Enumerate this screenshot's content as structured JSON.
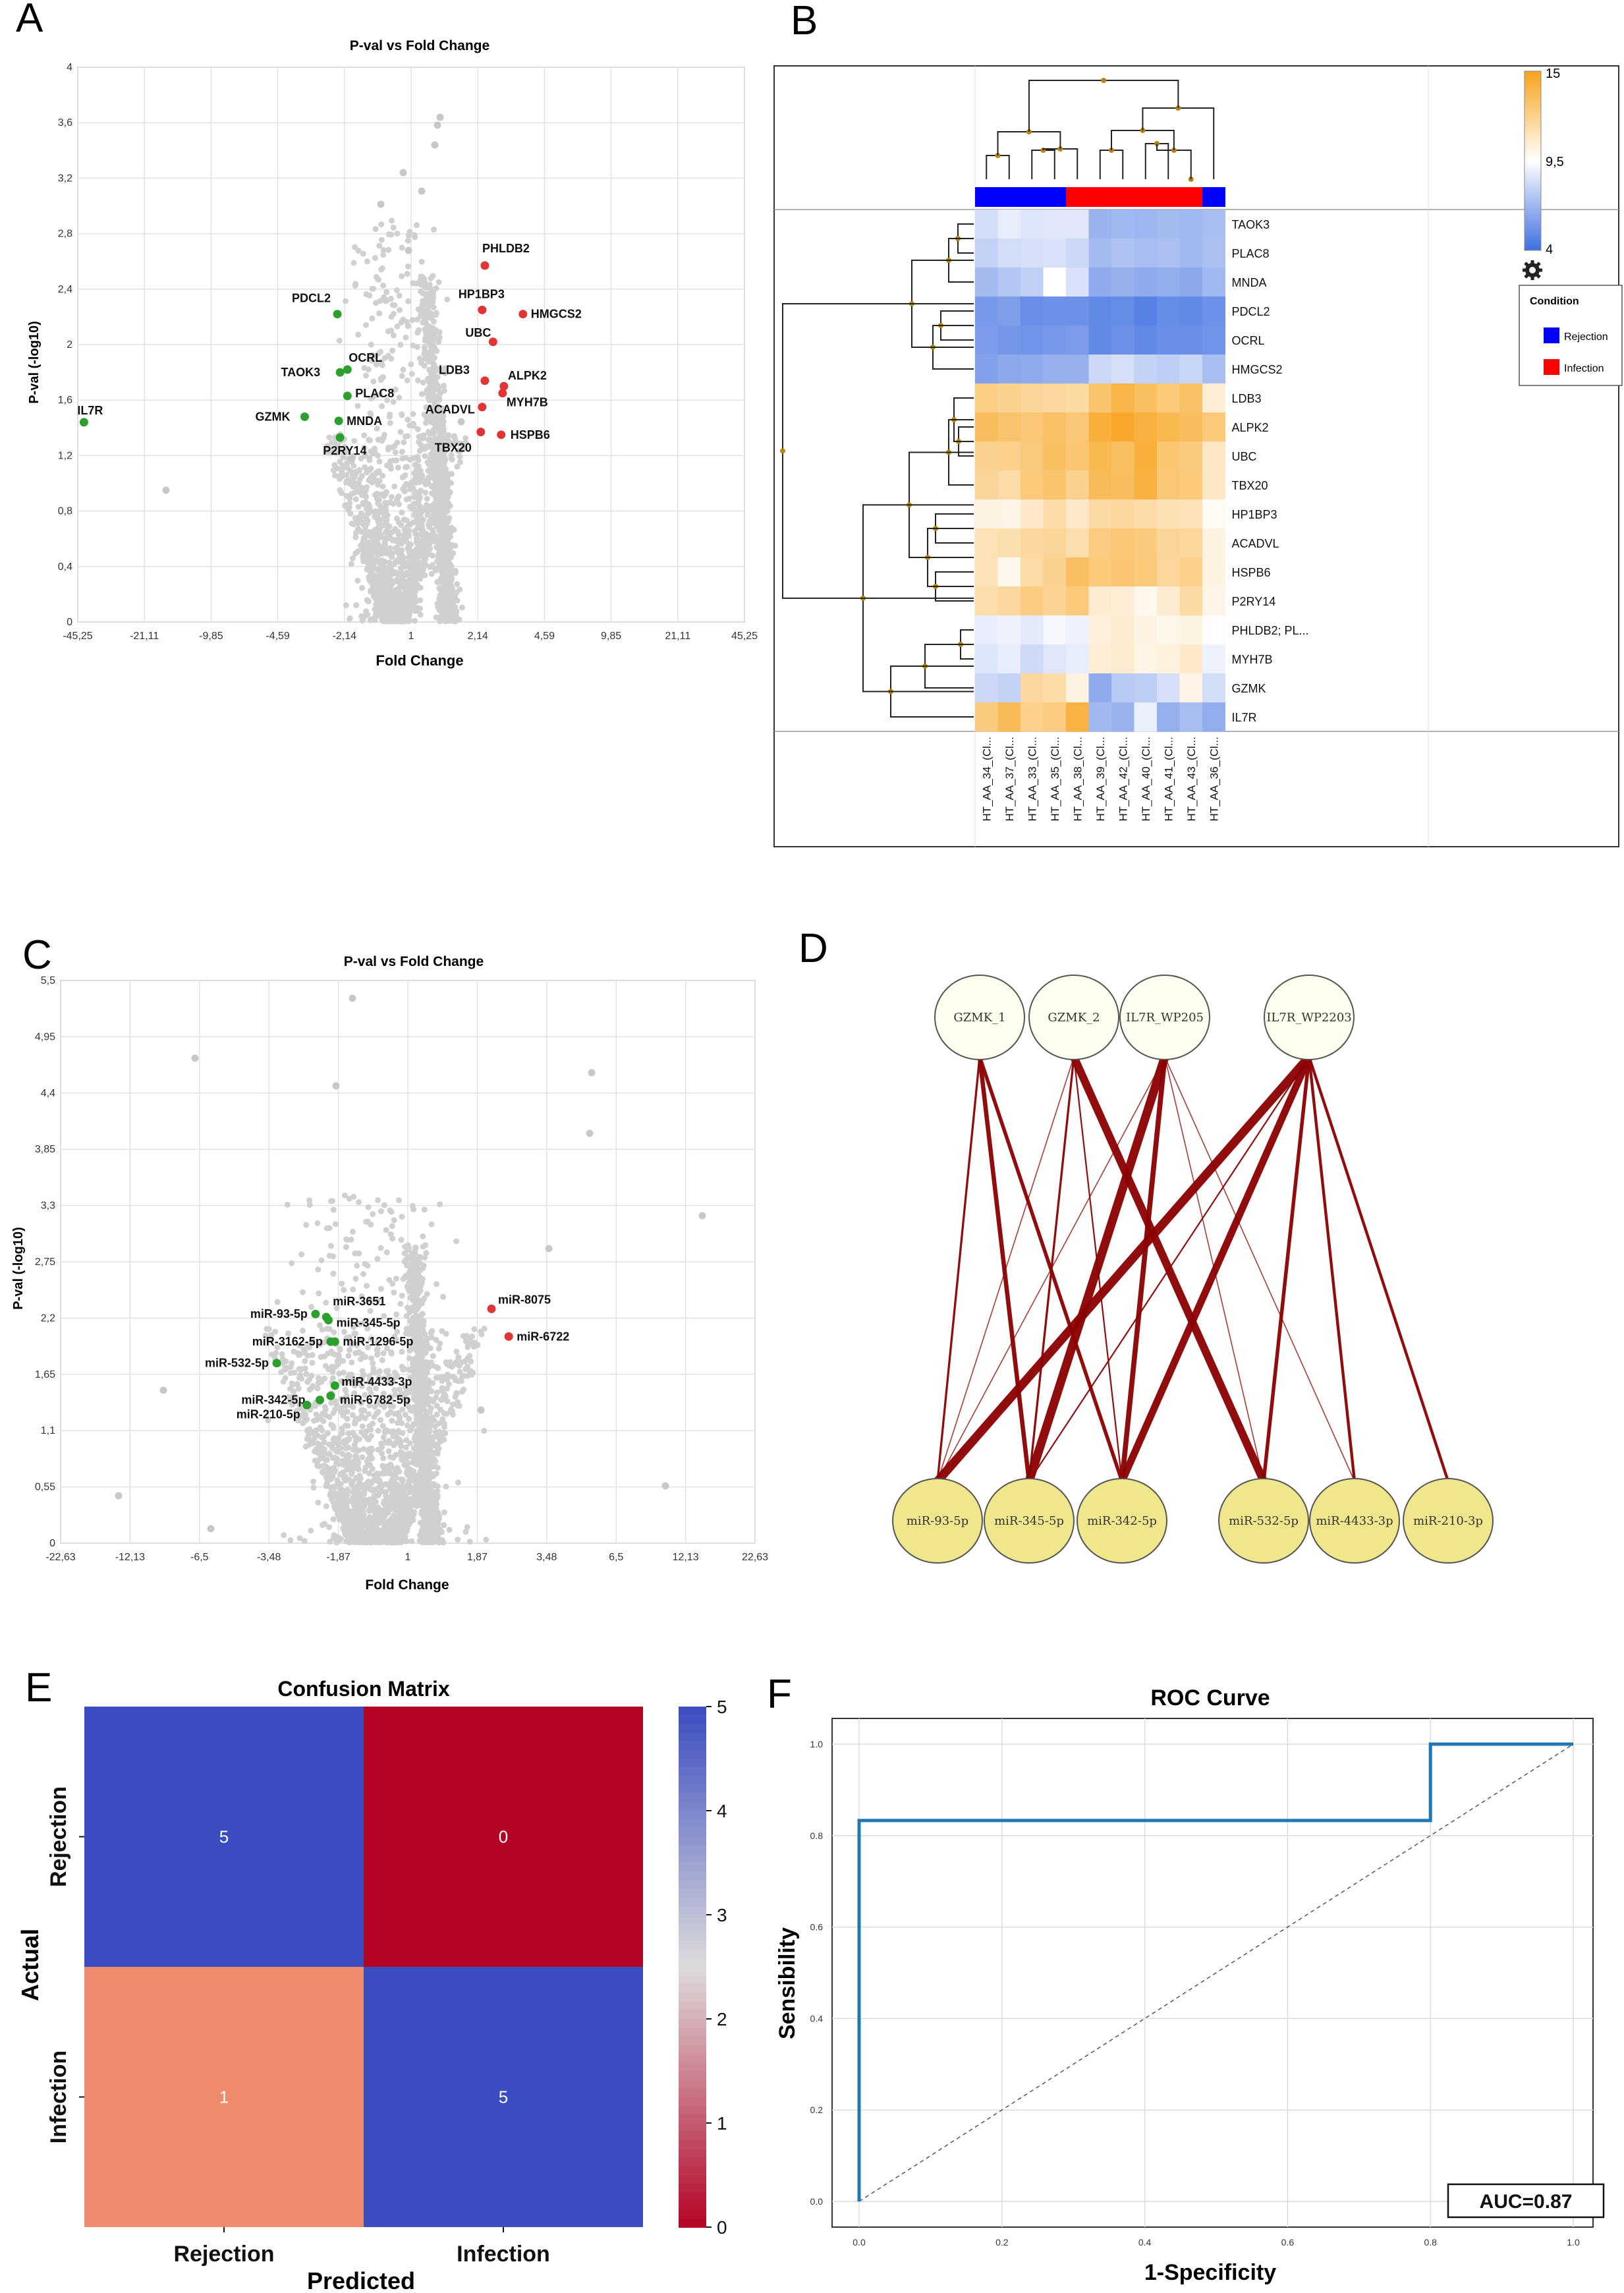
{
  "panels": {
    "a": "A",
    "b": "B",
    "c": "C",
    "d": "D",
    "e": "E",
    "f": "F"
  },
  "colors": {
    "grey": "#d0d0d0",
    "green": "#2ca02c",
    "red": "#e03535",
    "heat_low": "#3f6fe0",
    "heat_mid": "#ffffff",
    "heat_high": "#f7a21a",
    "rejection": "#0000ff",
    "infection": "#ff0000",
    "edge": "#8b0000",
    "gene_node": "#fffff0",
    "mirna_node": "#f0e68c",
    "cm_blue": "#3b4cc0",
    "cm_red": "#b40426",
    "cm_salmon": "#ef8a6c",
    "roc": "#1f77b4"
  },
  "chart_data": [
    {
      "id": "A",
      "type": "scatter",
      "title": "P-val vs Fold Change",
      "xlabel": "Fold Change",
      "ylabel": "P-val (-log10)",
      "xticks": [
        "-45,25",
        "-21,11",
        "-9,85",
        "-4,59",
        "-2,14",
        "1",
        "2,14",
        "4,59",
        "9,85",
        "21,11",
        "45,25"
      ],
      "yticks": [
        "0",
        "0,4",
        "0,8",
        "1,2",
        "1,6",
        "2",
        "2,4",
        "2,8",
        "3,2",
        "3,6",
        "4"
      ],
      "ylim": [
        0,
        4
      ],
      "x_scale": "symmetric-log",
      "highlighted": [
        {
          "label": "IL7R",
          "x": -43.0,
          "y": 1.44,
          "group": "down"
        },
        {
          "label": "GZMK",
          "x": -3.6,
          "y": 1.48,
          "group": "down"
        },
        {
          "label": "TAOK3",
          "x": -2.3,
          "y": 1.8,
          "group": "down"
        },
        {
          "label": "PDCL2",
          "x": -2.4,
          "y": 2.22,
          "group": "down"
        },
        {
          "label": "OCRL",
          "x": -2.0,
          "y": 1.82,
          "group": "down"
        },
        {
          "label": "PLAC8",
          "x": -2.0,
          "y": 1.63,
          "group": "down"
        },
        {
          "label": "MNDA",
          "x": -2.35,
          "y": 1.45,
          "group": "down"
        },
        {
          "label": "P2RY14",
          "x": -2.3,
          "y": 1.33,
          "group": "down"
        },
        {
          "label": "PHLDB2",
          "x": 2.4,
          "y": 2.57,
          "group": "up"
        },
        {
          "label": "HP1BP3",
          "x": 2.3,
          "y": 2.25,
          "group": "up"
        },
        {
          "label": "HMGCS2",
          "x": 3.8,
          "y": 2.22,
          "group": "up"
        },
        {
          "label": "UBC",
          "x": 2.7,
          "y": 2.02,
          "group": "up"
        },
        {
          "label": "LDB3",
          "x": 2.4,
          "y": 1.74,
          "group": "up"
        },
        {
          "label": "ALPK2",
          "x": 3.1,
          "y": 1.7,
          "group": "up"
        },
        {
          "label": "ACADVL",
          "x": 2.3,
          "y": 1.55,
          "group": "up"
        },
        {
          "label": "MYH7B",
          "x": 3.05,
          "y": 1.65,
          "group": "up"
        },
        {
          "label": "TBX20",
          "x": 2.25,
          "y": 1.37,
          "group": "up"
        },
        {
          "label": "HSPB6",
          "x": 3.0,
          "y": 1.35,
          "group": "up"
        }
      ]
    },
    {
      "id": "B",
      "type": "heatmap",
      "columns": [
        "HT_AA_34_(Cl...",
        "HT_AA_37_(Cl...",
        "HT_AA_33_(Cl...",
        "HT_AA_35_(Cl...",
        "HT_AA_38_(Cl...",
        "HT_AA_39_(Cl...",
        "HT_AA_42_(Cl...",
        "HT_AA_40_(Cl...",
        "HT_AA_41_(Cl...",
        "HT_AA_43_(Cl...",
        "HT_AA_36_(Cl..."
      ],
      "column_condition": [
        "Rejection",
        "Rejection",
        "Rejection",
        "Rejection",
        "Infection",
        "Infection",
        "Infection",
        "Infection",
        "Infection",
        "Infection",
        "Rejection"
      ],
      "rows": [
        "TAOK3",
        "PLAC8",
        "MNDA",
        "PDCL2",
        "OCRL",
        "HMGCS2",
        "LDB3",
        "ALPK2",
        "UBC",
        "TBX20",
        "HP1BP3",
        "ACADVL",
        "HSPB6",
        "P2RY14",
        "PHLDB2; PL...",
        "MYH7B",
        "GZMK",
        "IL7R"
      ],
      "values": [
        [
          8.2,
          8.8,
          8.5,
          8.6,
          8.6,
          6.6,
          6.8,
          6.7,
          6.9,
          6.8,
          7.0
        ],
        [
          7.8,
          8.2,
          8.3,
          8.4,
          8.0,
          6.9,
          7.2,
          7.0,
          7.1,
          6.8,
          7.1
        ],
        [
          6.9,
          7.3,
          7.7,
          9.5,
          8.4,
          6.3,
          6.5,
          6.3,
          6.4,
          6.2,
          6.8
        ],
        [
          5.6,
          5.8,
          5.2,
          5.3,
          5.3,
          5.0,
          5.1,
          4.7,
          5.1,
          5.0,
          5.3
        ],
        [
          5.7,
          5.5,
          5.4,
          5.6,
          5.7,
          5.0,
          5.3,
          5.0,
          5.2,
          5.2,
          5.4
        ],
        [
          5.9,
          6.2,
          6.3,
          6.5,
          6.5,
          8.0,
          8.3,
          7.8,
          7.6,
          7.9,
          7.0
        ],
        [
          12.4,
          12.2,
          12.0,
          11.8,
          11.7,
          13.0,
          13.9,
          13.3,
          12.7,
          13.2,
          10.5
        ],
        [
          13.4,
          13.0,
          12.8,
          13.2,
          12.8,
          14.2,
          14.6,
          14.1,
          13.7,
          13.4,
          12.7
        ],
        [
          12.2,
          12.3,
          12.6,
          13.3,
          12.9,
          13.7,
          13.3,
          14.2,
          12.9,
          12.6,
          11.0
        ],
        [
          12.0,
          11.6,
          12.7,
          13.0,
          12.2,
          13.5,
          13.4,
          14.1,
          12.8,
          12.7,
          10.9
        ],
        [
          10.2,
          10.1,
          10.8,
          11.6,
          10.8,
          11.7,
          11.8,
          11.6,
          11.3,
          11.2,
          9.8
        ],
        [
          11.2,
          11.4,
          11.8,
          12.0,
          11.5,
          12.5,
          12.8,
          12.6,
          12.0,
          11.9,
          10.2
        ],
        [
          11.2,
          9.9,
          11.6,
          12.2,
          13.3,
          12.7,
          12.9,
          12.7,
          11.9,
          12.3,
          10.2
        ],
        [
          11.5,
          11.8,
          12.5,
          12.1,
          12.7,
          10.6,
          10.5,
          9.9,
          10.6,
          11.7,
          10.1
        ],
        [
          8.8,
          9.0,
          8.7,
          9.2,
          9.0,
          10.4,
          10.6,
          10.2,
          10.0,
          10.2,
          9.6
        ],
        [
          8.5,
          8.8,
          8.1,
          8.6,
          8.8,
          10.5,
          10.6,
          10.1,
          10.3,
          10.8,
          9.0
        ],
        [
          8.0,
          7.8,
          11.8,
          11.6,
          10.2,
          6.3,
          7.5,
          7.6,
          8.3,
          10.1,
          8.2
        ],
        [
          12.6,
          13.5,
          12.3,
          12.5,
          14.0,
          6.8,
          6.6,
          8.9,
          6.5,
          7.0,
          6.4
        ]
      ],
      "colorbar": {
        "max": "15",
        "mid": "9,5",
        "min": "4"
      },
      "legend": {
        "title": "Condition",
        "items": [
          "Rejection",
          "Infection"
        ]
      }
    },
    {
      "id": "C",
      "type": "scatter",
      "title": "P-val vs Fold Change",
      "xlabel": "Fold Change",
      "ylabel": "P-val (-log10)",
      "xticks": [
        "-22,63",
        "-12,13",
        "-6,5",
        "-3,48",
        "-1,87",
        "1",
        "1,87",
        "3,48",
        "6,5",
        "12,13",
        "22,63"
      ],
      "yticks": [
        "0",
        "0,55",
        "1,1",
        "1,65",
        "2,2",
        "2,75",
        "3,3",
        "3,85",
        "4,4",
        "4,95",
        "5,5"
      ],
      "ylim": [
        0,
        5.5
      ],
      "x_scale": "symmetric-log",
      "highlighted": [
        {
          "label": "miR-93-5p",
          "x": -2.4,
          "y": 2.24,
          "group": "down"
        },
        {
          "label": "miR-3651",
          "x": -2.15,
          "y": 2.21,
          "group": "down"
        },
        {
          "label": "miR-345-5p",
          "x": -2.1,
          "y": 2.18,
          "group": "down"
        },
        {
          "label": "miR-3162-5p",
          "x": -2.05,
          "y": 1.97,
          "group": "down"
        },
        {
          "label": "miR-1296-5p",
          "x": -1.95,
          "y": 1.97,
          "group": "down"
        },
        {
          "label": "miR-532-5p",
          "x": -3.3,
          "y": 1.76,
          "group": "down"
        },
        {
          "label": "miR-4433-3p",
          "x": -1.95,
          "y": 1.54,
          "group": "down"
        },
        {
          "label": "miR-342-5p",
          "x": -2.3,
          "y": 1.4,
          "group": "down"
        },
        {
          "label": "miR-6782-5p",
          "x": -2.05,
          "y": 1.44,
          "group": "down"
        },
        {
          "label": "miR-210-5p",
          "x": -2.6,
          "y": 1.35,
          "group": "down"
        },
        {
          "label": "miR-8075",
          "x": 2.2,
          "y": 2.29,
          "group": "up"
        },
        {
          "label": "miR-6722",
          "x": 2.6,
          "y": 2.02,
          "group": "up"
        }
      ]
    },
    {
      "id": "D",
      "type": "network",
      "genes": [
        "GZMK_1",
        "GZMK_2",
        "IL7R_WP205",
        "IL7R_WP2203"
      ],
      "mirnas": [
        "miR-93-5p",
        "miR-345-5p",
        "miR-342-5p",
        "miR-532-5p",
        "miR-4433-3p",
        "miR-210-3p"
      ],
      "edges": [
        {
          "gene": "GZMK_1",
          "mirna": "miR-93-5p",
          "weight": 3
        },
        {
          "gene": "GZMK_1",
          "mirna": "miR-345-5p",
          "weight": 6
        },
        {
          "gene": "GZMK_1",
          "mirna": "miR-342-5p",
          "weight": 5
        },
        {
          "gene": "GZMK_2",
          "mirna": "miR-93-5p",
          "weight": 1.5
        },
        {
          "gene": "GZMK_2",
          "mirna": "miR-345-5p",
          "weight": 3
        },
        {
          "gene": "GZMK_2",
          "mirna": "miR-342-5p",
          "weight": 2
        },
        {
          "gene": "GZMK_2",
          "mirna": "miR-532-5p",
          "weight": 11
        },
        {
          "gene": "IL7R_WP205",
          "mirna": "miR-93-5p",
          "weight": 1.5
        },
        {
          "gene": "IL7R_WP205",
          "mirna": "miR-345-5p",
          "weight": 12
        },
        {
          "gene": "IL7R_WP205",
          "mirna": "miR-342-5p",
          "weight": 7
        },
        {
          "gene": "IL7R_WP205",
          "mirna": "miR-532-5p",
          "weight": 1.5
        },
        {
          "gene": "IL7R_WP205",
          "mirna": "miR-4433-3p",
          "weight": 1.5
        },
        {
          "gene": "IL7R_WP2203",
          "mirna": "miR-93-5p",
          "weight": 12
        },
        {
          "gene": "IL7R_WP2203",
          "mirna": "miR-345-5p",
          "weight": 2
        },
        {
          "gene": "IL7R_WP2203",
          "mirna": "miR-342-5p",
          "weight": 10
        },
        {
          "gene": "IL7R_WP2203",
          "mirna": "miR-532-5p",
          "weight": 5
        },
        {
          "gene": "IL7R_WP2203",
          "mirna": "miR-4433-3p",
          "weight": 4
        },
        {
          "gene": "IL7R_WP2203",
          "mirna": "miR-210-3p",
          "weight": 4
        }
      ]
    },
    {
      "id": "E",
      "type": "heatmap",
      "title": "Confusion Matrix",
      "xlabel": "Predicted",
      "ylabel": "Actual",
      "labels": [
        "Rejection",
        "Infection"
      ],
      "matrix": [
        [
          5,
          0
        ],
        [
          1,
          5
        ]
      ],
      "colorbar_ticks": [
        "0",
        "1",
        "2",
        "3",
        "4",
        "5"
      ],
      "vlim": [
        0,
        5
      ]
    },
    {
      "id": "F",
      "type": "line",
      "title": "ROC Curve",
      "xlabel": "1-Specificity",
      "ylabel": "Sensibility",
      "xticks": [
        "0.0",
        "0.2",
        "0.4",
        "0.6",
        "0.8",
        "1.0"
      ],
      "yticks": [
        "0.0",
        "0.2",
        "0.4",
        "0.6",
        "0.8",
        "1.0"
      ],
      "x": [
        0,
        0,
        0.8,
        0.8,
        1
      ],
      "y": [
        0,
        0.833,
        0.833,
        1,
        1
      ],
      "diagonal": true,
      "auc_label": "AUC=0.87"
    }
  ]
}
